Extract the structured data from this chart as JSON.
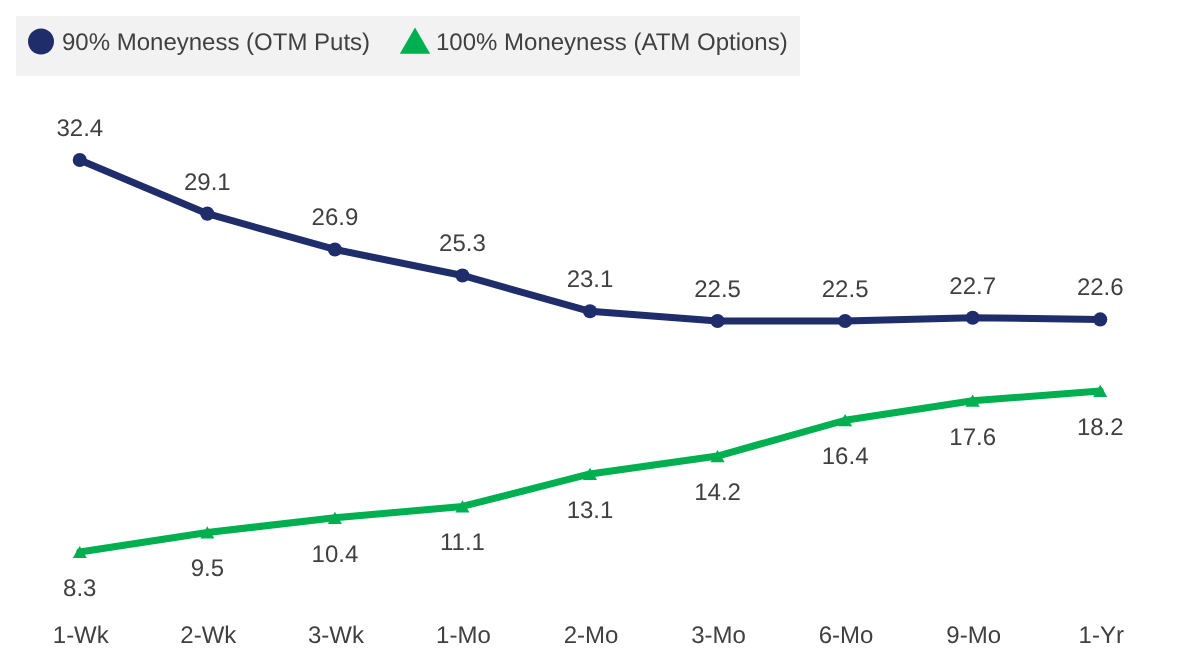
{
  "chart_data": {
    "type": "line",
    "categories": [
      "1-Wk",
      "2-Wk",
      "3-Wk",
      "1-Mo",
      "2-Mo",
      "3-Mo",
      "6-Mo",
      "9-Mo",
      "1-Yr"
    ],
    "series": [
      {
        "name": "90% Moneyness (OTM Puts)",
        "color": "#1f2d6b",
        "marker": "circle",
        "values": [
          32.4,
          29.1,
          26.9,
          25.3,
          23.1,
          22.5,
          22.5,
          22.7,
          22.6
        ]
      },
      {
        "name": "100% Moneyness (ATM Options)",
        "color": "#00b050",
        "marker": "triangle",
        "values": [
          8.3,
          9.5,
          10.4,
          11.1,
          13.1,
          14.2,
          16.4,
          17.6,
          18.2
        ]
      }
    ],
    "data_labels": true,
    "legend": "top",
    "grid": false,
    "tick_labels": "x"
  }
}
